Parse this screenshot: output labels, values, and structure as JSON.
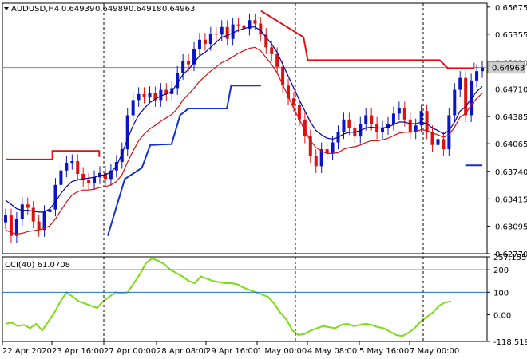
{
  "header": {
    "menu_arrow": "down-triangle-icon",
    "symbol": "AUDUSD,H4",
    "ohlc": [
      "0.64939",
      "0.64989",
      "0.64918",
      "0.64963"
    ]
  },
  "indicator": {
    "label": "CCI(40) 61.0708"
  },
  "colors": {
    "bull_candle": "#0a14c8",
    "bear_candle": "#e01010",
    "fast_ma": "#0000a0",
    "slow_ma": "#d81010",
    "stop_blue": "#1030d8",
    "stop_red": "#e01010",
    "cci_line": "#7ddc14",
    "grid": "#000000",
    "current_price_bg": "#d0d0d0"
  },
  "chart_data": [
    {
      "type": "line",
      "title": "AUDUSD,H4",
      "ylim": [
        0.6277,
        0.6572
      ],
      "y_ticks": [
        "0.65675",
        "0.65355",
        "0.65020",
        "0.64710",
        "0.64385",
        "0.64065",
        "0.63740",
        "0.63415",
        "0.63095",
        "0.62770"
      ],
      "current_price": "0.64963",
      "x_tick_labels": [
        "22 Apr 2020",
        "23 Apr 16:00",
        "27 Apr 00:00",
        "28 Apr 08:00",
        "29 Apr 16:00",
        "1 May 00:00",
        "4 May 08:00",
        "5 May 16:00",
        "7 May 00:00"
      ],
      "candles_close": [
        0.6322,
        0.6298,
        0.6318,
        0.6335,
        0.6331,
        0.6315,
        0.6305,
        0.6326,
        0.6329,
        0.6358,
        0.6375,
        0.6384,
        0.6386,
        0.6371,
        0.6364,
        0.636,
        0.6367,
        0.6372,
        0.6365,
        0.6375,
        0.6385,
        0.64,
        0.644,
        0.6458,
        0.6465,
        0.6462,
        0.6466,
        0.6458,
        0.647,
        0.6465,
        0.6472,
        0.649,
        0.6504,
        0.65,
        0.6518,
        0.6529,
        0.6524,
        0.6536,
        0.6535,
        0.6544,
        0.653,
        0.6547,
        0.6546,
        0.6542,
        0.6552,
        0.6548,
        0.6535,
        0.652,
        0.6512,
        0.6497,
        0.6475,
        0.646,
        0.6452,
        0.6435,
        0.6415,
        0.6392,
        0.638,
        0.64,
        0.6395,
        0.6408,
        0.642,
        0.6435,
        0.6425,
        0.6415,
        0.643,
        0.644,
        0.643,
        0.642,
        0.6425,
        0.643,
        0.6442,
        0.6448,
        0.6435,
        0.642,
        0.6428,
        0.6445,
        0.642,
        0.6405,
        0.6412,
        0.64,
        0.644,
        0.647,
        0.6484,
        0.644,
        0.6481,
        0.6492,
        0.6496
      ],
      "fast_ma": [
        0.634,
        0.6335,
        0.633,
        0.6328,
        0.6328,
        0.6327,
        0.6326,
        0.6326,
        0.633,
        0.6338,
        0.6348,
        0.6356,
        0.6362,
        0.6364,
        0.6365,
        0.6366,
        0.6367,
        0.6369,
        0.637,
        0.6373,
        0.638,
        0.6395,
        0.6412,
        0.6428,
        0.644,
        0.6448,
        0.6455,
        0.6459,
        0.6463,
        0.6465,
        0.6468,
        0.6478,
        0.6488,
        0.6494,
        0.6502,
        0.651,
        0.6514,
        0.652,
        0.6526,
        0.6532,
        0.6534,
        0.6537,
        0.654,
        0.6542,
        0.6544,
        0.6544,
        0.654,
        0.6532,
        0.6524,
        0.6514,
        0.65,
        0.6486,
        0.6472,
        0.6458,
        0.6445,
        0.6432,
        0.6422,
        0.6417,
        0.6413,
        0.6412,
        0.6414,
        0.6418,
        0.642,
        0.642,
        0.6422,
        0.6425,
        0.6426,
        0.6425,
        0.6425,
        0.6426,
        0.6429,
        0.6432,
        0.6432,
        0.643,
        0.643,
        0.6432,
        0.643,
        0.6425,
        0.6422,
        0.6418,
        0.6422,
        0.6432,
        0.6445,
        0.645,
        0.646,
        0.6468,
        0.6474
      ],
      "slow_ma": [
        0.6305,
        0.6302,
        0.63,
        0.6301,
        0.6303,
        0.6304,
        0.6305,
        0.6307,
        0.631,
        0.6318,
        0.6328,
        0.6338,
        0.6346,
        0.635,
        0.6352,
        0.6352,
        0.6353,
        0.6355,
        0.6356,
        0.6358,
        0.6362,
        0.637,
        0.6385,
        0.6398,
        0.641,
        0.6418,
        0.6424,
        0.6428,
        0.6433,
        0.6437,
        0.6441,
        0.6448,
        0.6458,
        0.6465,
        0.6472,
        0.648,
        0.6486,
        0.6492,
        0.6497,
        0.6502,
        0.6505,
        0.6509,
        0.6513,
        0.6516,
        0.6519,
        0.652,
        0.6516,
        0.6508,
        0.65,
        0.649,
        0.6476,
        0.6462,
        0.6448,
        0.6435,
        0.6422,
        0.641,
        0.6402,
        0.6398,
        0.6395,
        0.6395,
        0.6396,
        0.64,
        0.6402,
        0.6403,
        0.6405,
        0.6408,
        0.641,
        0.641,
        0.6411,
        0.6413,
        0.6416,
        0.6419,
        0.642,
        0.642,
        0.6421,
        0.6423,
        0.6422,
        0.6419,
        0.6417,
        0.6414,
        0.6417,
        0.6426,
        0.6438,
        0.6442,
        0.6452,
        0.646,
        0.6466
      ],
      "stop_lines": [
        {
          "color": "#e01010",
          "points": [
            [
              0,
              0.6388
            ],
            [
              11,
              0.6388
            ],
            [
              11,
              0.6398
            ],
            [
              22,
              0.6398
            ],
            [
              22,
              0.6391
            ]
          ]
        },
        {
          "color": "#1030d8",
          "points": [
            [
              24,
              0.6298
            ],
            [
              28,
              0.6365
            ],
            [
              32,
              0.6378
            ],
            [
              34,
              0.6405
            ],
            [
              39,
              0.6406
            ],
            [
              41,
              0.644
            ],
            [
              43,
              0.6448
            ],
            [
              52,
              0.6448
            ],
            [
              53,
              0.6475
            ],
            [
              60,
              0.6475
            ]
          ]
        },
        {
          "color": "#e01010",
          "points": [
            [
              60,
              0.6563
            ],
            [
              70,
              0.6532
            ],
            [
              71,
              0.6505
            ],
            [
              102,
              0.6505
            ],
            [
              104,
              0.6495
            ],
            [
              110,
              0.6495
            ],
            [
              110,
              0.6502
            ]
          ]
        },
        {
          "color": "#1030d8",
          "points": [
            [
              108,
              0.6381
            ],
            [
              112,
              0.6381
            ]
          ]
        }
      ]
    },
    {
      "type": "line",
      "title": "CCI(40) 61.0708",
      "ylim": [
        -118.519,
        257.1558
      ],
      "y_ticks": [
        "257.1558",
        "200",
        "100",
        "0.00",
        "-118.519"
      ],
      "levels": [
        200,
        100
      ],
      "values": [
        -40,
        -35,
        -50,
        -45,
        -60,
        -40,
        -70,
        -30,
        10,
        60,
        100,
        80,
        60,
        50,
        40,
        30,
        60,
        80,
        100,
        95,
        100,
        140,
        180,
        230,
        250,
        240,
        225,
        200,
        185,
        170,
        150,
        140,
        170,
        160,
        150,
        145,
        140,
        140,
        135,
        120,
        110,
        100,
        90,
        80,
        50,
        10,
        -20,
        -70,
        -90,
        -85,
        -70,
        -60,
        -50,
        -55,
        -60,
        -45,
        -40,
        -50,
        -45,
        -40,
        -45,
        -55,
        -60,
        -75,
        -90,
        -95,
        -80,
        -60,
        -30,
        -10,
        10,
        40,
        55,
        60
      ],
      "xlim_index": [
        0,
        115
      ]
    }
  ]
}
